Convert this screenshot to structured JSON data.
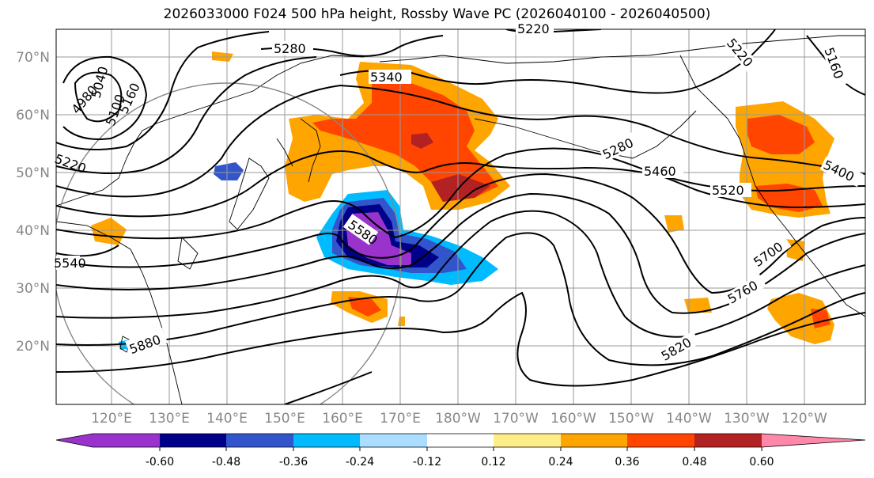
{
  "title": "2026033000 F024 500 hPa height, Rossby Wave PC (2026040100 - 2026040500)",
  "map": {
    "lon_labels": [
      "120°E",
      "130°E",
      "140°E",
      "150°E",
      "160°E",
      "170°E",
      "180°W",
      "170°W",
      "160°W",
      "150°W",
      "140°W",
      "130°W",
      "120°W"
    ],
    "lat_labels": [
      "70°N",
      "60°N",
      "50°N",
      "40°N",
      "30°N",
      "20°N"
    ],
    "contour_labels": [
      "5220",
      "5280",
      "5340",
      "4980",
      "5040",
      "5100",
      "5160",
      "5220",
      "5580",
      "5540",
      "5880",
      "5280",
      "5460",
      "5520",
      "5400",
      "5220",
      "5160",
      "5700",
      "5760",
      "5820"
    ]
  },
  "colorbar": {
    "tick_labels": [
      "-0.60",
      "-0.48",
      "-0.36",
      "-0.24",
      "-0.12",
      "0.12",
      "0.24",
      "0.36",
      "0.48",
      "0.60"
    ],
    "colors": [
      "#9933cc",
      "#000088",
      "#3355cc",
      "#00bbff",
      "#aaddff",
      "#ffffff",
      "#ffee88",
      "#ffa500",
      "#ff4500",
      "#b22222",
      "#ff88aa"
    ]
  }
}
